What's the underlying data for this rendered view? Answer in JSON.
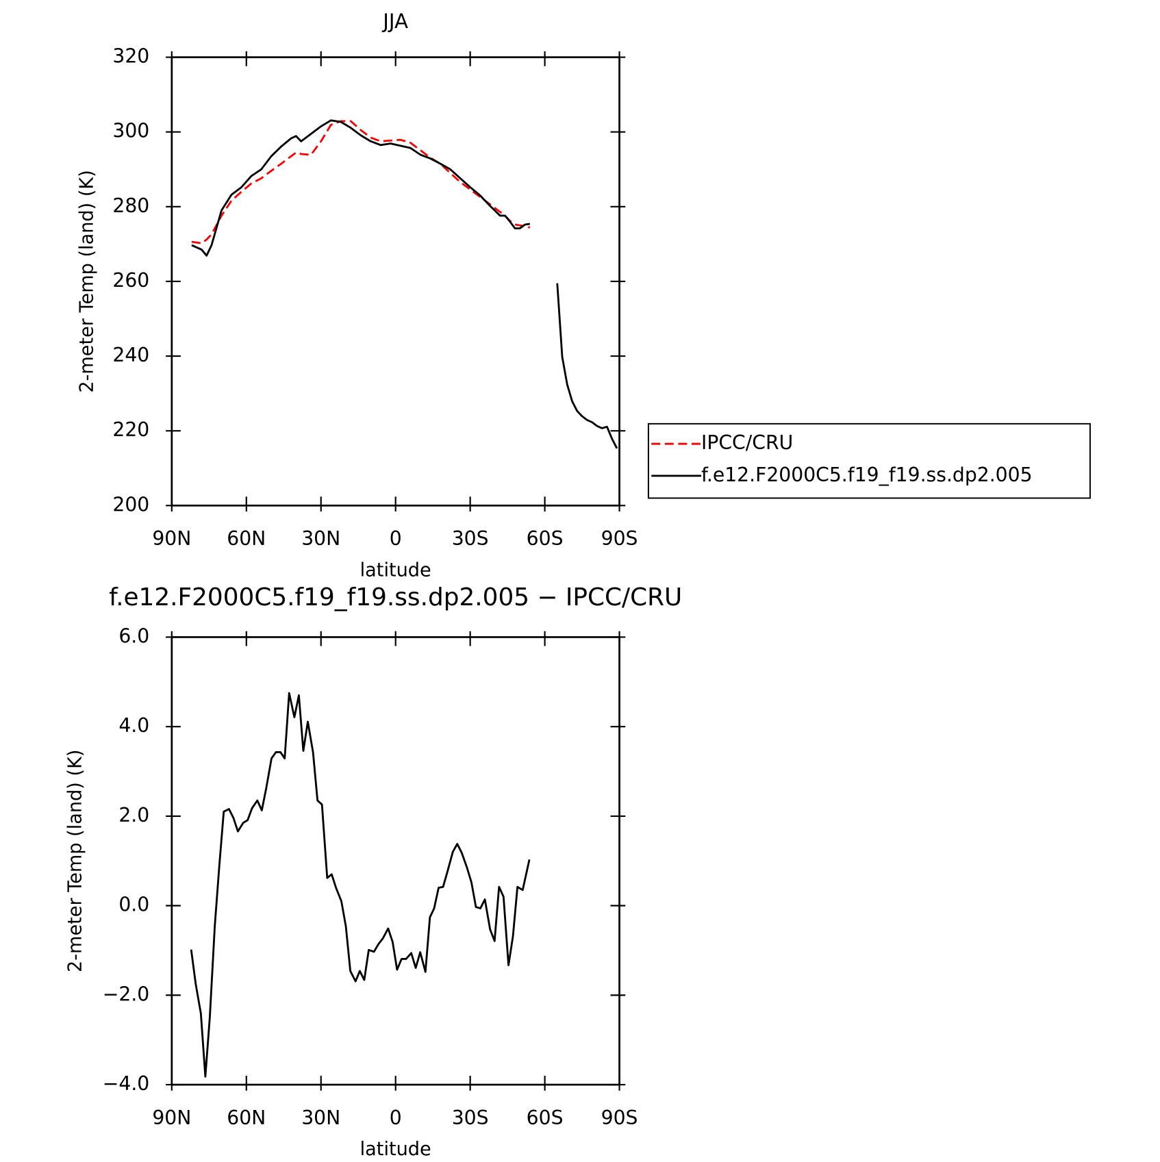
{
  "chart_data": [
    {
      "type": "line",
      "title": "JJA",
      "xlabel": "latitude",
      "ylabel": "2-meter Temp (land) (K)",
      "x": [
        82,
        78,
        76,
        74,
        70,
        66,
        62,
        58,
        54,
        50,
        46,
        42,
        40,
        38,
        34,
        30,
        26,
        22,
        18,
        14,
        10,
        6,
        2,
        -2,
        -6,
        -10,
        -14,
        -18,
        -22,
        -26,
        -30,
        -34,
        -38,
        -42,
        -44,
        -46,
        -48,
        -50,
        -52,
        -54,
        -58,
        -62,
        -65,
        -67,
        -69,
        -71,
        -73,
        -75,
        -77,
        -79,
        -81,
        -83,
        -85,
        -87,
        -89
      ],
      "series": [
        {
          "name": "IPCC/CRU",
          "color": "#ff0000",
          "dashed": true,
          "values": [
            270.6,
            270.2,
            271.2,
            272.6,
            277.6,
            281.6,
            284.0,
            286.2,
            287.6,
            289.6,
            291.5,
            293.5,
            294.5,
            294.1,
            293.9,
            297.5,
            301.9,
            302.9,
            302.9,
            300.5,
            298.5,
            297.5,
            297.7,
            297.9,
            297.1,
            295.1,
            293.1,
            291.5,
            289.0,
            286.6,
            284.6,
            282.6,
            280.6,
            278.6,
            277.6,
            276.2,
            275.2,
            275.0,
            274.8,
            274.4,
            null,
            null,
            null,
            null,
            null,
            null,
            null,
            null,
            null,
            null,
            null,
            null,
            null,
            null,
            null
          ]
        },
        {
          "name": "f.e12.F2000C5.f19_f19.ss.dp2.005",
          "color": "#000000",
          "dashed": false,
          "values": [
            269.7,
            268.5,
            266.9,
            269.7,
            279.0,
            283.2,
            285.2,
            288.2,
            290.0,
            293.5,
            296.1,
            298.3,
            298.9,
            297.5,
            299.5,
            301.5,
            303.1,
            302.7,
            301.1,
            299.1,
            297.5,
            296.5,
            296.9,
            296.3,
            295.7,
            293.9,
            292.9,
            291.5,
            290.0,
            287.6,
            285.2,
            283.0,
            280.2,
            277.6,
            277.6,
            276.0,
            274.2,
            274.2,
            275.2,
            275.4,
            null,
            null,
            259.5,
            239.8,
            232.4,
            227.9,
            225.3,
            223.9,
            222.9,
            222.3,
            221.3,
            220.7,
            221.1,
            217.9,
            215.3
          ]
        }
      ],
      "xlim": [
        90,
        -90
      ],
      "xticks": [
        {
          "value": 90,
          "label": "90N"
        },
        {
          "value": 60,
          "label": "60N"
        },
        {
          "value": 30,
          "label": "30N"
        },
        0,
        {
          "value": -30,
          "label": "30S"
        },
        {
          "value": -60,
          "label": "60S"
        },
        {
          "value": -90,
          "label": "90S"
        }
      ],
      "ylim": [
        200,
        320
      ],
      "yticks": [
        200,
        220,
        240,
        260,
        280,
        300,
        320
      ],
      "legend": "outside right"
    },
    {
      "type": "line",
      "title": "f.e12.F2000C5.f19_f19.ss.dp2.005 − IPCC/CRU",
      "xlabel": "latitude",
      "ylabel": "2-meter Temp (land) (K)",
      "x": [
        82.2,
        80.4,
        78.3,
        76.5,
        74.7,
        72.7,
        70.9,
        69.1,
        67.0,
        65.2,
        63.4,
        61.3,
        59.5,
        57.7,
        55.6,
        53.8,
        52.0,
        49.9,
        48.1,
        46.3,
        44.6,
        42.8,
        40.7,
        38.9,
        37.1,
        35.3,
        33.2,
        31.4,
        29.6,
        27.5,
        25.7,
        23.9,
        21.8,
        20.0,
        18.2,
        16.1,
        14.4,
        12.6,
        10.8,
        8.7,
        6.9,
        5.1,
        3.0,
        1.2,
        -0.6,
        -2.4,
        -4.2,
        -6.3,
        -8.1,
        -9.9,
        -12.0,
        -13.8,
        -15.5,
        -17.3,
        -19.1,
        -20.9,
        -23.0,
        -24.8,
        -26.6,
        -28.7,
        -30.5,
        -32.3,
        -34.1,
        -35.9,
        -38.0,
        -39.8,
        -41.6,
        -43.4,
        -45.4,
        -47.2,
        -49.0,
        -51.1,
        -53.8
      ],
      "series": [
        {
          "name": "f.e12.F2000C5.f19_f19.ss.dp2.005 − IPCC/CRU",
          "color": "#000000",
          "dashed": false,
          "values": [
            -0.98,
            -1.74,
            -2.41,
            -3.82,
            -2.49,
            -0.45,
            0.88,
            2.1,
            2.16,
            1.96,
            1.66,
            1.85,
            1.91,
            2.18,
            2.35,
            2.13,
            2.63,
            3.29,
            3.43,
            3.43,
            3.29,
            4.75,
            4.21,
            4.7,
            3.46,
            4.11,
            3.43,
            2.35,
            2.26,
            0.62,
            0.7,
            0.39,
            0.1,
            -0.46,
            -1.46,
            -1.69,
            -1.46,
            -1.66,
            -0.99,
            -1.03,
            -0.86,
            -0.73,
            -0.51,
            -0.81,
            -1.43,
            -1.19,
            -1.19,
            -1.06,
            -1.39,
            -1.04,
            -1.48,
            -0.26,
            -0.06,
            0.4,
            0.42,
            0.77,
            1.2,
            1.38,
            1.18,
            0.85,
            0.52,
            -0.03,
            -0.06,
            0.14,
            -0.53,
            -0.79,
            0.42,
            0.2,
            -1.33,
            -0.68,
            0.42,
            0.35,
            1.03
          ]
        }
      ],
      "xlim": [
        90,
        -90
      ],
      "xticks": [
        {
          "value": 90,
          "label": "90N"
        },
        {
          "value": 60,
          "label": "60N"
        },
        {
          "value": 30,
          "label": "30N"
        },
        0,
        {
          "value": -30,
          "label": "30S"
        },
        {
          "value": -60,
          "label": "60S"
        },
        {
          "value": -90,
          "label": "90S"
        }
      ],
      "ylim": [
        -4,
        6
      ],
      "yticks": [
        {
          "value": -4,
          "label": "−4.0"
        },
        {
          "value": -2,
          "label": "−2.0"
        },
        {
          "value": 0,
          "label": "0.0"
        },
        {
          "value": 2,
          "label": "2.0"
        },
        {
          "value": 4,
          "label": "4.0"
        },
        {
          "value": 6,
          "label": "6.0"
        }
      ]
    }
  ]
}
